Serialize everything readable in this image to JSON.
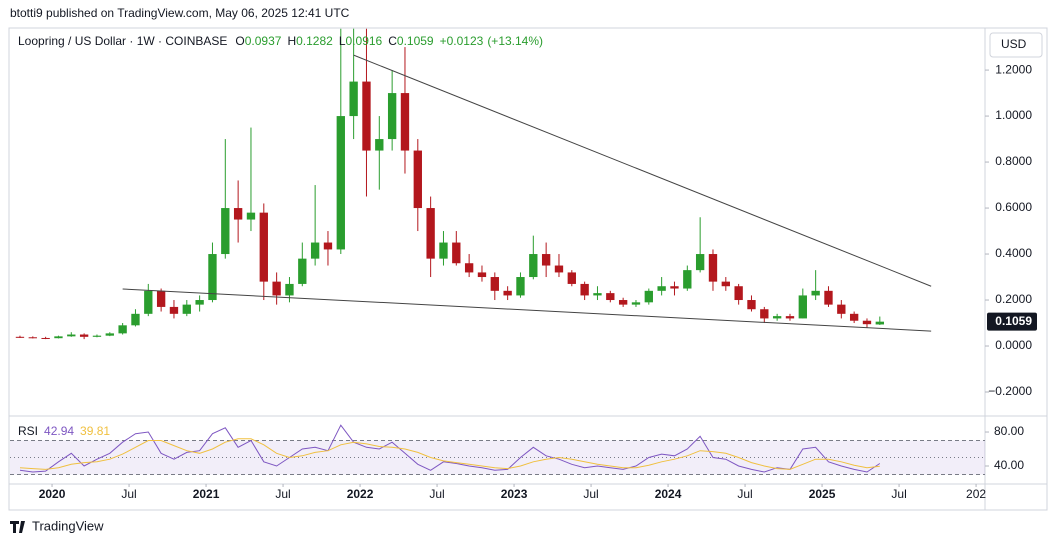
{
  "header": {
    "publisher": "btotti9 published on TradingView.com, May 06, 2025 12:41 UTC",
    "brand": "TradingView"
  },
  "chart_data": [
    {
      "type": "candlestick",
      "title": "Loopring / US Dollar · 1W · COINBASE",
      "ohlc_labels": [
        "O",
        "H",
        "L",
        "C"
      ],
      "ohlc": [
        0.0937,
        0.1282,
        0.0916,
        0.1059
      ],
      "change": "+0.0123",
      "change_pct": "(+13.14%)",
      "currency": "USD",
      "x": [
        "2019-10",
        "2019-11",
        "2019-12",
        "2020-01",
        "2020-02",
        "2020-03",
        "2020-04",
        "2020-05",
        "2020-06",
        "2020-07",
        "2020-08",
        "2020-09",
        "2020-10",
        "2020-11",
        "2020-12",
        "2021-01",
        "2021-02",
        "2021-03",
        "2021-04",
        "2021-05",
        "2021-06",
        "2021-07",
        "2021-08",
        "2021-09",
        "2021-10",
        "2021-11",
        "2021-12",
        "2022-01",
        "2022-02",
        "2022-03",
        "2022-04",
        "2022-05",
        "2022-06",
        "2022-07",
        "2022-08",
        "2022-09",
        "2022-10",
        "2022-11",
        "2022-12",
        "2023-01",
        "2023-02",
        "2023-03",
        "2023-04",
        "2023-05",
        "2023-06",
        "2023-07",
        "2023-08",
        "2023-09",
        "2023-10",
        "2023-11",
        "2023-12",
        "2024-01",
        "2024-02",
        "2024-03",
        "2024-04",
        "2024-05",
        "2024-06",
        "2024-07",
        "2024-08",
        "2024-09",
        "2024-10",
        "2024-11",
        "2024-12",
        "2025-01",
        "2025-02",
        "2025-03",
        "2025-04",
        "2025-05"
      ],
      "open": [
        0.04,
        0.038,
        0.035,
        0.034,
        0.042,
        0.05,
        0.04,
        0.045,
        0.055,
        0.09,
        0.14,
        0.24,
        0.17,
        0.14,
        0.18,
        0.2,
        0.4,
        0.6,
        0.55,
        0.58,
        0.28,
        0.22,
        0.27,
        0.38,
        0.45,
        0.42,
        1.0,
        1.15,
        0.85,
        0.9,
        1.1,
        0.85,
        0.6,
        0.38,
        0.45,
        0.36,
        0.32,
        0.3,
        0.24,
        0.22,
        0.3,
        0.4,
        0.35,
        0.32,
        0.27,
        0.22,
        0.23,
        0.2,
        0.18,
        0.19,
        0.24,
        0.26,
        0.25,
        0.33,
        0.4,
        0.28,
        0.26,
        0.2,
        0.16,
        0.12,
        0.13,
        0.12,
        0.22,
        0.24,
        0.18,
        0.14,
        0.11,
        0.0937
      ],
      "high": [
        0.045,
        0.042,
        0.04,
        0.045,
        0.06,
        0.055,
        0.05,
        0.06,
        0.1,
        0.16,
        0.27,
        0.25,
        0.2,
        0.2,
        0.22,
        0.45,
        0.9,
        0.72,
        0.95,
        0.62,
        0.32,
        0.3,
        0.45,
        0.7,
        0.5,
        1.38,
        1.38,
        1.38,
        1.0,
        1.2,
        1.3,
        0.9,
        0.65,
        0.5,
        0.5,
        0.4,
        0.35,
        0.32,
        0.26,
        0.32,
        0.48,
        0.45,
        0.4,
        0.33,
        0.28,
        0.26,
        0.24,
        0.21,
        0.2,
        0.25,
        0.3,
        0.28,
        0.35,
        0.56,
        0.42,
        0.3,
        0.27,
        0.22,
        0.17,
        0.14,
        0.14,
        0.25,
        0.33,
        0.26,
        0.2,
        0.15,
        0.12,
        0.1282
      ],
      "low": [
        0.035,
        0.033,
        0.03,
        0.033,
        0.04,
        0.03,
        0.038,
        0.043,
        0.05,
        0.085,
        0.13,
        0.15,
        0.12,
        0.13,
        0.15,
        0.19,
        0.38,
        0.45,
        0.5,
        0.2,
        0.18,
        0.19,
        0.26,
        0.35,
        0.35,
        0.4,
        0.9,
        0.65,
        0.68,
        0.85,
        0.75,
        0.5,
        0.3,
        0.35,
        0.35,
        0.3,
        0.28,
        0.2,
        0.2,
        0.21,
        0.29,
        0.3,
        0.3,
        0.26,
        0.2,
        0.2,
        0.19,
        0.17,
        0.17,
        0.18,
        0.22,
        0.22,
        0.24,
        0.32,
        0.24,
        0.24,
        0.18,
        0.15,
        0.1,
        0.11,
        0.11,
        0.12,
        0.2,
        0.17,
        0.12,
        0.1,
        0.08,
        0.0916
      ],
      "close": [
        0.038,
        0.035,
        0.034,
        0.042,
        0.05,
        0.04,
        0.045,
        0.055,
        0.09,
        0.14,
        0.24,
        0.17,
        0.14,
        0.18,
        0.2,
        0.4,
        0.6,
        0.55,
        0.58,
        0.28,
        0.22,
        0.27,
        0.38,
        0.45,
        0.42,
        1.0,
        1.15,
        0.85,
        0.9,
        1.1,
        0.85,
        0.6,
        0.38,
        0.45,
        0.36,
        0.32,
        0.3,
        0.24,
        0.22,
        0.3,
        0.4,
        0.35,
        0.32,
        0.27,
        0.22,
        0.23,
        0.2,
        0.18,
        0.19,
        0.24,
        0.26,
        0.25,
        0.33,
        0.4,
        0.28,
        0.26,
        0.2,
        0.16,
        0.12,
        0.13,
        0.12,
        0.22,
        0.24,
        0.18,
        0.14,
        0.11,
        0.095,
        0.1059
      ],
      "up_color": "#2a9d2e",
      "down_color": "#b3171d",
      "ylim": [
        -0.3,
        1.383
      ],
      "yticks": [
        {
          "value": 1.2,
          "label": "1.2000"
        },
        {
          "value": 1.0,
          "label": "1.0000"
        },
        {
          "value": 0.8,
          "label": "0.8000"
        },
        {
          "value": 0.6,
          "label": "0.6000"
        },
        {
          "value": 0.4,
          "label": "0.4000"
        },
        {
          "value": 0.2,
          "label": "0.2000"
        },
        {
          "value": 0,
          "label": "0.0000"
        },
        {
          "value": -0.2,
          "label": "−0.2000"
        }
      ],
      "xlim": [
        2019.727,
        2026.058
      ],
      "xticks": [
        2020,
        {
          "value": 2020.5,
          "label": "Jul"
        },
        2021,
        {
          "value": 2021.5,
          "label": "Jul"
        },
        2022,
        {
          "value": 2022.5,
          "label": "Jul"
        },
        2023,
        {
          "value": 2023.5,
          "label": "Jul"
        },
        2024,
        {
          "value": 2024.5,
          "label": "Jul"
        },
        2025,
        {
          "value": 2025.5,
          "label": "Jul"
        },
        {
          "value": 2026,
          "label": "202"
        }
      ],
      "trendlines": [
        {
          "x": [
            "2021-12",
            "2025-09"
          ],
          "y": [
            1.265,
            0.26
          ]
        },
        {
          "x": [
            "2020-06",
            "2025-09"
          ],
          "y": [
            0.248,
            0.065
          ]
        }
      ],
      "trendline_color": "#444444"
    },
    {
      "type": "line",
      "title": "RSI",
      "series": [
        {
          "color": "#7e57c2",
          "values": [
            35,
            33,
            34,
            45,
            55,
            40,
            48,
            55,
            68,
            78,
            80,
            55,
            48,
            56,
            58,
            78,
            85,
            62,
            70,
            45,
            40,
            50,
            60,
            62,
            58,
            88,
            68,
            62,
            60,
            68,
            55,
            42,
            35,
            45,
            43,
            40,
            38,
            35,
            36,
            50,
            62,
            52,
            48,
            42,
            38,
            40,
            38,
            36,
            40,
            50,
            54,
            52,
            60,
            75,
            50,
            48,
            40,
            36,
            33,
            38,
            36,
            60,
            62,
            45,
            40,
            36,
            33,
            42.94
          ]
        },
        {
          "color": "#f0c040",
          "values": [
            38,
            37,
            36,
            38,
            42,
            44,
            45,
            48,
            54,
            62,
            70,
            70,
            64,
            58,
            55,
            60,
            68,
            72,
            72,
            65,
            55,
            50,
            52,
            56,
            58,
            65,
            68,
            66,
            63,
            62,
            60,
            56,
            50,
            46,
            44,
            42,
            40,
            38,
            37,
            40,
            45,
            48,
            50,
            48,
            45,
            42,
            40,
            38,
            38,
            41,
            45,
            48,
            52,
            58,
            57,
            55,
            50,
            44,
            40,
            37,
            36,
            42,
            48,
            48,
            45,
            41,
            38,
            39.81
          ]
        }
      ],
      "ylim": [
        20,
        96.5
      ],
      "yticks": [
        {
          "value": 80,
          "label": "80.00"
        },
        {
          "value": 40,
          "label": "40.00"
        }
      ],
      "band": [
        30,
        50,
        70
      ],
      "band_color": "#7e57c2"
    }
  ]
}
